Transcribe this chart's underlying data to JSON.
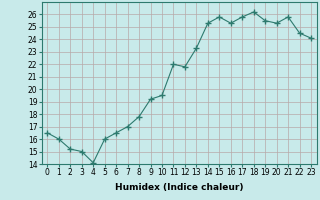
{
  "x": [
    0,
    1,
    2,
    3,
    4,
    5,
    6,
    7,
    8,
    9,
    10,
    11,
    12,
    13,
    14,
    15,
    16,
    17,
    18,
    19,
    20,
    21,
    22,
    23
  ],
  "y": [
    16.5,
    16.0,
    15.2,
    15.0,
    14.1,
    16.0,
    16.5,
    17.0,
    17.8,
    19.2,
    19.5,
    22.0,
    21.8,
    23.3,
    25.3,
    25.8,
    25.3,
    25.8,
    26.2,
    25.5,
    25.3,
    25.8,
    24.5,
    24.1
  ],
  "line_color": "#2d7a6e",
  "marker": "+",
  "marker_size": 4,
  "bg_color": "#c8eaea",
  "grid_color": "#b8a8a8",
  "xlabel": "Humidex (Indice chaleur)",
  "ylim": [
    14,
    27
  ],
  "xlim": [
    -0.5,
    23.5
  ],
  "yticks": [
    14,
    15,
    16,
    17,
    18,
    19,
    20,
    21,
    22,
    23,
    24,
    25,
    26
  ],
  "xticks": [
    0,
    1,
    2,
    3,
    4,
    5,
    6,
    7,
    8,
    9,
    10,
    11,
    12,
    13,
    14,
    15,
    16,
    17,
    18,
    19,
    20,
    21,
    22,
    23
  ],
  "label_fontsize": 6.5,
  "tick_fontsize": 5.5
}
